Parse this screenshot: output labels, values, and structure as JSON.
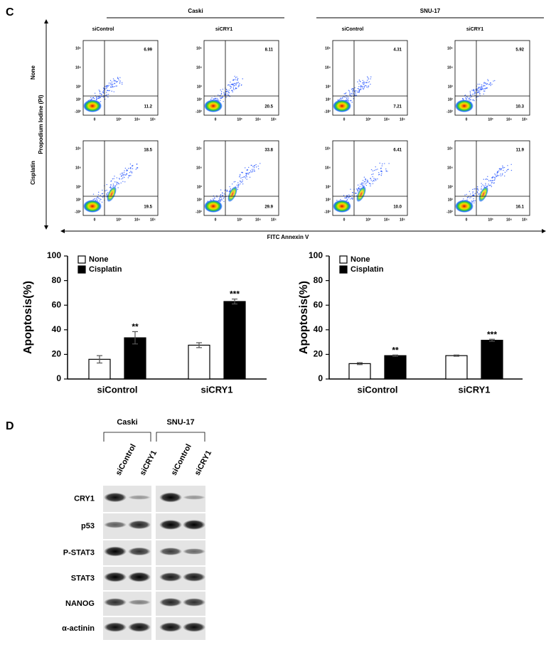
{
  "panel_c": {
    "letter": "C",
    "groups": [
      "Caski",
      "SNU-17"
    ],
    "columns": [
      "siControl",
      "siCRY1",
      "siControl",
      "siCRY1"
    ],
    "rows": [
      "None",
      "Cisplatin"
    ],
    "y_label": "Propodium Iodine (PI)",
    "x_label": "FITC Annexin V",
    "flow_yticks": [
      "10⁵",
      "10⁴",
      "10³",
      "10²",
      "-10²"
    ],
    "flow_xticks": [
      "0",
      "10³",
      "10⁴",
      "10⁵"
    ],
    "quadrants": [
      [
        [
          "6.99",
          "11.2"
        ],
        [
          "8.11",
          "20.5"
        ],
        [
          "4.31",
          "7.21"
        ],
        [
          "5.92",
          "10.3"
        ]
      ],
      [
        [
          "18.5",
          "19.5"
        ],
        [
          "33.8",
          "29.9"
        ],
        [
          "6.41",
          "10.0"
        ],
        [
          "11.9",
          "16.1"
        ]
      ]
    ]
  },
  "chart_data": [
    {
      "type": "bar",
      "ylabel": "Apoptosis(%)",
      "categories": [
        "siControl",
        "siCRY1"
      ],
      "series": [
        {
          "name": "None",
          "color": "#ffffff",
          "values": [
            16,
            27.5
          ],
          "errors": [
            3,
            2
          ]
        },
        {
          "name": "Cisplatin",
          "color": "#000000",
          "values": [
            33.5,
            63
          ],
          "errors": [
            5,
            2
          ],
          "annotations": [
            "**",
            "***"
          ]
        }
      ],
      "ylim": [
        0,
        100
      ],
      "yticks": [
        0,
        20,
        40,
        60,
        80,
        100
      ],
      "legend": "upper left"
    },
    {
      "type": "bar",
      "ylabel": "Apoptosis(%)",
      "categories": [
        "siControl",
        "siCRY1"
      ],
      "series": [
        {
          "name": "None",
          "color": "#ffffff",
          "values": [
            12.5,
            19
          ],
          "errors": [
            0.8,
            0.5
          ]
        },
        {
          "name": "Cisplatin",
          "color": "#000000",
          "values": [
            19,
            31.5
          ],
          "errors": [
            0.5,
            0.8
          ],
          "annotations": [
            "**",
            "***"
          ]
        }
      ],
      "ylim": [
        0,
        100
      ],
      "yticks": [
        0,
        20,
        40,
        60,
        80,
        100
      ],
      "legend": "upper left"
    }
  ],
  "panel_d": {
    "letter": "D",
    "groups": [
      "Caski",
      "SNU-17"
    ],
    "lanes": [
      "siControl",
      "siCRY1",
      "siControl",
      "siCRY1"
    ],
    "rows": [
      "CRY1",
      "p53",
      "P-STAT3",
      "STAT3",
      "NANOG",
      "α-actinin"
    ]
  }
}
